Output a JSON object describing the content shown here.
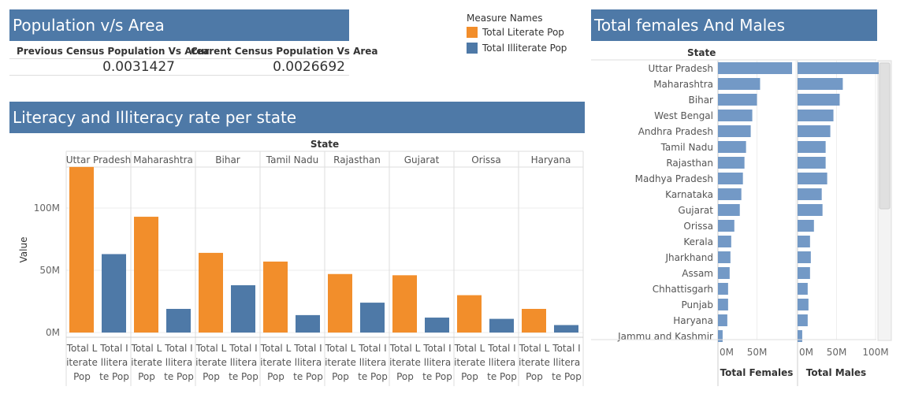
{
  "colors": {
    "header_bg": "#4e79a7",
    "literate": "#f28e2b",
    "illiterate": "#4e79a7",
    "hbar": "#7399c6"
  },
  "pop_area": {
    "title": "Population v/s Area",
    "prev_label": "Previous Census Population Vs Area",
    "curr_label": "Current Census Population Vs Area",
    "prev_value": "0.0031427",
    "curr_value": "0.0026692"
  },
  "legend": {
    "title": "Measure Names",
    "items": [
      {
        "label": "Total Literate Pop",
        "color": "#f28e2b"
      },
      {
        "label": "Total Illiterate Pop",
        "color": "#4e79a7"
      }
    ]
  },
  "literacy": {
    "title": "Literacy and Illiteracy rate per state",
    "state_header": "State",
    "ylabel": "Value",
    "col_label_lit": [
      "Total L",
      "iterate",
      "Pop"
    ],
    "col_label_ill": [
      "Total I",
      "llitera",
      "te Pop"
    ]
  },
  "gender": {
    "title": "Total females And Males",
    "state_header": "State",
    "xlabel_f": "Total Females",
    "xlabel_m": "Total Males"
  },
  "chart_data": [
    {
      "type": "bar",
      "title": "Literacy and Illiteracy rate per state",
      "xlabel": "State",
      "ylabel": "Value",
      "categories": [
        "Uttar Pradesh",
        "Maharashtra",
        "Bihar",
        "Tamil Nadu",
        "Rajasthan",
        "Gujarat",
        "Orissa",
        "Haryana"
      ],
      "series": [
        {
          "name": "Total Literate Pop",
          "values": [
            133000000,
            93000000,
            64000000,
            57000000,
            47000000,
            46000000,
            30000000,
            19000000
          ]
        },
        {
          "name": "Total Illiterate Pop",
          "values": [
            63000000,
            19000000,
            38000000,
            14000000,
            24000000,
            12000000,
            11000000,
            6000000
          ]
        }
      ],
      "yticks": [
        "0M",
        "50M",
        "100M"
      ],
      "ylim": [
        0,
        140000000
      ],
      "legend_position": "top-right",
      "grid": true
    },
    {
      "type": "bar",
      "title": "Total females And Males",
      "orientation": "horizontal",
      "categories": [
        "Uttar Pradesh",
        "Maharashtra",
        "Bihar",
        "West Bengal",
        "Andhra Pradesh",
        "Tamil Nadu",
        "Rajasthan",
        "Madhya Pradesh",
        "Karnataka",
        "Gujarat",
        "Orissa",
        "Kerala",
        "Jharkhand",
        "Assam",
        "Chhattisgarh",
        "Punjab",
        "Haryana",
        "Jammu and Kashmir"
      ],
      "series": [
        {
          "name": "Total Females",
          "values": [
            95000000,
            54000000,
            50000000,
            44000000,
            42000000,
            36000000,
            34000000,
            32000000,
            30000000,
            28000000,
            21000000,
            17000000,
            16000000,
            15000000,
            13000000,
            13000000,
            12000000,
            6000000
          ]
        },
        {
          "name": "Total Males",
          "values": [
            104000000,
            58000000,
            54000000,
            46000000,
            42000000,
            36000000,
            36000000,
            38000000,
            31000000,
            32000000,
            21000000,
            16000000,
            17000000,
            16000000,
            13000000,
            14000000,
            13000000,
            6000000
          ]
        }
      ],
      "xticks": [
        "0M",
        "50M",
        "100M"
      ],
      "xlim": [
        0,
        105000000
      ]
    }
  ]
}
